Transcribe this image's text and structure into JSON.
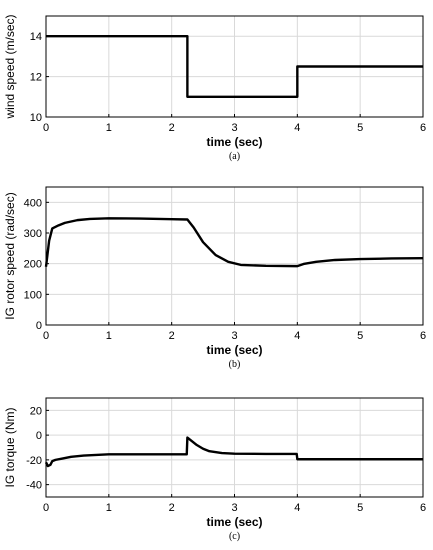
{
  "chart_data": [
    {
      "type": "line",
      "caption": "(a)",
      "xlabel": "time (sec)",
      "ylabel": "wind speed (m/sec)",
      "xlim": [
        0,
        6
      ],
      "ylim": [
        10,
        15
      ],
      "xticks": [
        0,
        1,
        2,
        3,
        4,
        5,
        6
      ],
      "yticks": [
        10,
        12,
        14
      ],
      "grid": true,
      "series": [
        {
          "x": [
            0,
            2.25,
            2.25,
            4.0,
            4.0,
            6.0
          ],
          "y": [
            14,
            14,
            11,
            11,
            12.5,
            12.5
          ]
        }
      ]
    },
    {
      "type": "line",
      "caption": "(b)",
      "xlabel": "time (sec)",
      "ylabel": "IG rotor speed (rad/sec)",
      "xlim": [
        0,
        6
      ],
      "ylim": [
        0,
        450
      ],
      "xticks": [
        0,
        1,
        2,
        3,
        4,
        5,
        6
      ],
      "yticks": [
        0,
        100,
        200,
        300,
        400
      ],
      "grid": true,
      "series": [
        {
          "x": [
            0,
            0.05,
            0.1,
            0.2,
            0.3,
            0.5,
            0.7,
            1.0,
            1.5,
            2.0,
            2.25,
            2.35,
            2.5,
            2.7,
            2.9,
            3.1,
            3.5,
            4.0,
            4.1,
            4.3,
            4.6,
            5.0,
            5.5,
            6.0
          ],
          "y": [
            190,
            275,
            315,
            325,
            333,
            342,
            346,
            348,
            347,
            345,
            344,
            318,
            270,
            228,
            206,
            196,
            193,
            192,
            199,
            206,
            212,
            215,
            217,
            218
          ]
        }
      ]
    },
    {
      "type": "line",
      "caption": "(c)",
      "xlabel": "time (sec)",
      "ylabel": "IG torque (Nm)",
      "xlim": [
        0,
        6
      ],
      "ylim": [
        -50,
        30
      ],
      "xticks": [
        0,
        1,
        2,
        3,
        4,
        5,
        6
      ],
      "yticks": [
        -40,
        -20,
        0,
        20
      ],
      "grid": true,
      "series": [
        {
          "x": [
            0,
            0.03,
            0.07,
            0.1,
            0.15,
            0.25,
            0.4,
            0.6,
            0.8,
            1.0,
            1.5,
            2.0,
            2.24,
            2.25,
            2.3,
            2.4,
            2.5,
            2.6,
            2.8,
            3.0,
            3.5,
            3.99,
            4.0,
            4.5,
            5.0,
            6.0
          ],
          "y": [
            -22,
            -25,
            -24,
            -21,
            -20,
            -19,
            -17.5,
            -16.5,
            -16,
            -15.5,
            -15.5,
            -15.5,
            -15.5,
            -2,
            -4,
            -8,
            -11,
            -13,
            -14.5,
            -15,
            -15.2,
            -15.2,
            -19.5,
            -19.5,
            -19.5,
            -19.5
          ]
        }
      ]
    }
  ]
}
